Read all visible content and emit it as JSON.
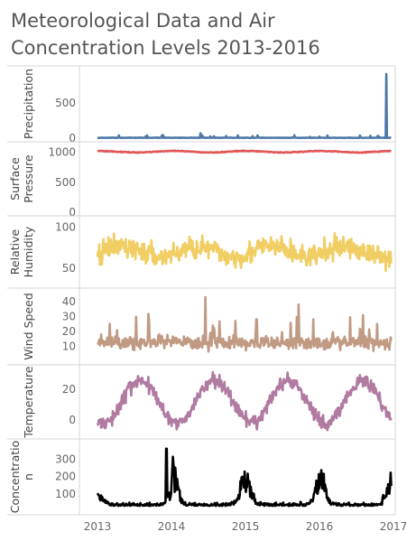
{
  "title": "Meteorological Data and Air Concentration Levels 2013-2016",
  "chart_data": [
    {
      "type": "line",
      "name": "precipitation",
      "ylabel": [
        "Precipitation"
      ],
      "color": "#4e79a7",
      "ylim": [
        0,
        960
      ],
      "yticks": [
        0,
        500
      ],
      "xlim": [
        2013,
        2017
      ]
    },
    {
      "type": "line",
      "name": "surface-pressure",
      "ylabel": [
        "Surface",
        "Pressure"
      ],
      "color": "#e15759",
      "ylim": [
        0,
        1100
      ],
      "yticks": [
        0,
        500,
        1000
      ],
      "xlim": [
        2013,
        2017
      ]
    },
    {
      "type": "line",
      "name": "relative-humidity",
      "ylabel": [
        "Relative",
        "Humidity"
      ],
      "color": "#f1ce63",
      "ylim": [
        30,
        108
      ],
      "yticks": [
        50,
        100
      ],
      "xlim": [
        2013,
        2017
      ]
    },
    {
      "type": "line",
      "name": "wind-speed",
      "ylabel": [
        "Wind Speed"
      ],
      "color": "#c09a83",
      "ylim": [
        0,
        46
      ],
      "yticks": [
        10,
        20,
        30,
        40
      ],
      "xlim": [
        2013,
        2017
      ]
    },
    {
      "type": "line",
      "name": "temperature",
      "ylabel": [
        "Temperature"
      ],
      "color": "#b07aa1",
      "ylim": [
        -10,
        33
      ],
      "yticks": [
        0,
        20
      ],
      "xlim": [
        2013,
        2017
      ]
    },
    {
      "type": "line",
      "name": "concentration",
      "ylabel": [
        "Concentratio",
        "n"
      ],
      "color": "#000000",
      "ylim": [
        0,
        390
      ],
      "yticks": [
        100,
        200,
        300
      ],
      "xlim": [
        2013,
        2017
      ]
    }
  ],
  "x_axis": {
    "ticks": [
      2013,
      2014,
      2015,
      2016,
      2017
    ]
  }
}
